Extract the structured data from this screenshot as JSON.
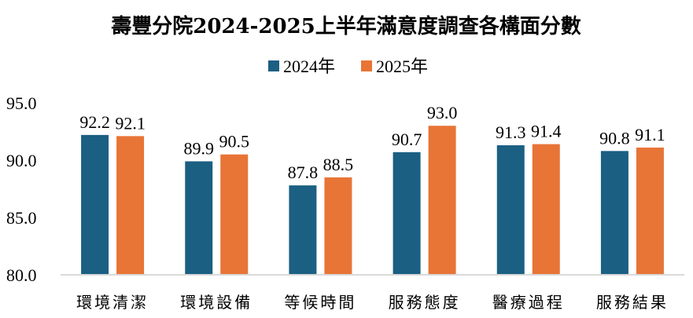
{
  "chart_data": {
    "type": "bar",
    "title": "壽豐分院2024-2025上半年滿意度調查各構面分數",
    "xlabel": "",
    "ylabel": "",
    "ylim": [
      80,
      95
    ],
    "yticks": [
      "95.0",
      "90.0",
      "85.0",
      "80.0"
    ],
    "ytick_values": [
      95,
      90,
      85,
      80
    ],
    "grid": false,
    "legend_position": "top",
    "categories": [
      "環境清潔",
      "環境設備",
      "等候時間",
      "服務態度",
      "醫療過程",
      "服務結果"
    ],
    "series": [
      {
        "name": "2024年",
        "color": "#1b5f82",
        "values": [
          92.2,
          89.9,
          87.8,
          90.7,
          91.3,
          90.8
        ],
        "labels": [
          "92.2",
          "89.9",
          "87.8",
          "90.7",
          "91.3",
          "90.8"
        ]
      },
      {
        "name": "2025年",
        "color": "#e87436",
        "values": [
          92.1,
          90.5,
          88.5,
          93.0,
          91.4,
          91.1
        ],
        "labels": [
          "92.1",
          "90.5",
          "88.5",
          "93.0",
          "91.4",
          "91.1"
        ]
      }
    ],
    "axis_color": "#d9d9d9"
  }
}
